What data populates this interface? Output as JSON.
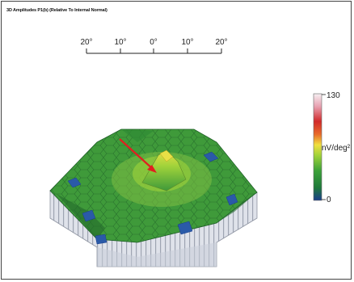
{
  "title": "3D Amplitudes P1(b) (Relative To Internal Normal)",
  "scale": {
    "ticks": [
      "20°",
      "10°",
      "0°",
      "10°",
      "20°"
    ]
  },
  "colorbar": {
    "max_label": "130",
    "unit_label": "nV/deg²",
    "min_label": "0",
    "colors": [
      "#1a3e8c",
      "#1f7a3a",
      "#3da23a",
      "#9fd23a",
      "#f0e040",
      "#e86a2a",
      "#d12a2a",
      "#e8a0b0",
      "#f6f0f2"
    ]
  },
  "plot": {
    "annotation": "red-arrow",
    "colors": {
      "top_green": "#3f9a3a",
      "dark_green": "#236b2b",
      "light_green": "#8fca4a",
      "yellow": "#e8e046",
      "blue": "#2a5aa8",
      "side": "#d9dde6",
      "side_shade": "#b8bdc8"
    }
  }
}
